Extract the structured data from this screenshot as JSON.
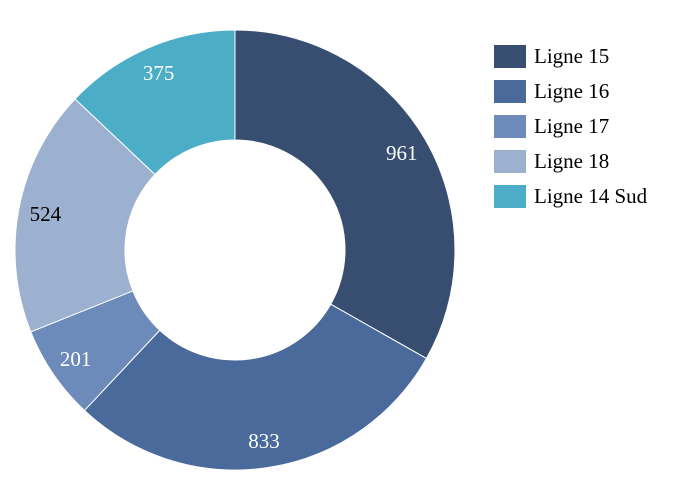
{
  "chart_data": {
    "type": "pie",
    "variant": "donut",
    "categories": [
      "Ligne 15",
      "Ligne 16",
      "Ligne 17",
      "Ligne 18",
      "Ligne 14 Sud"
    ],
    "values": [
      961,
      833,
      201,
      524,
      375
    ],
    "colors": [
      "#374e70",
      "#4a6a9b",
      "#6c8bba",
      "#9cb0d0",
      "#4badc6"
    ],
    "label_colors": [
      "#ffffff",
      "#ffffff",
      "#ffffff",
      "#000000",
      "#ffffff"
    ],
    "title": "",
    "legend_position": "right"
  }
}
